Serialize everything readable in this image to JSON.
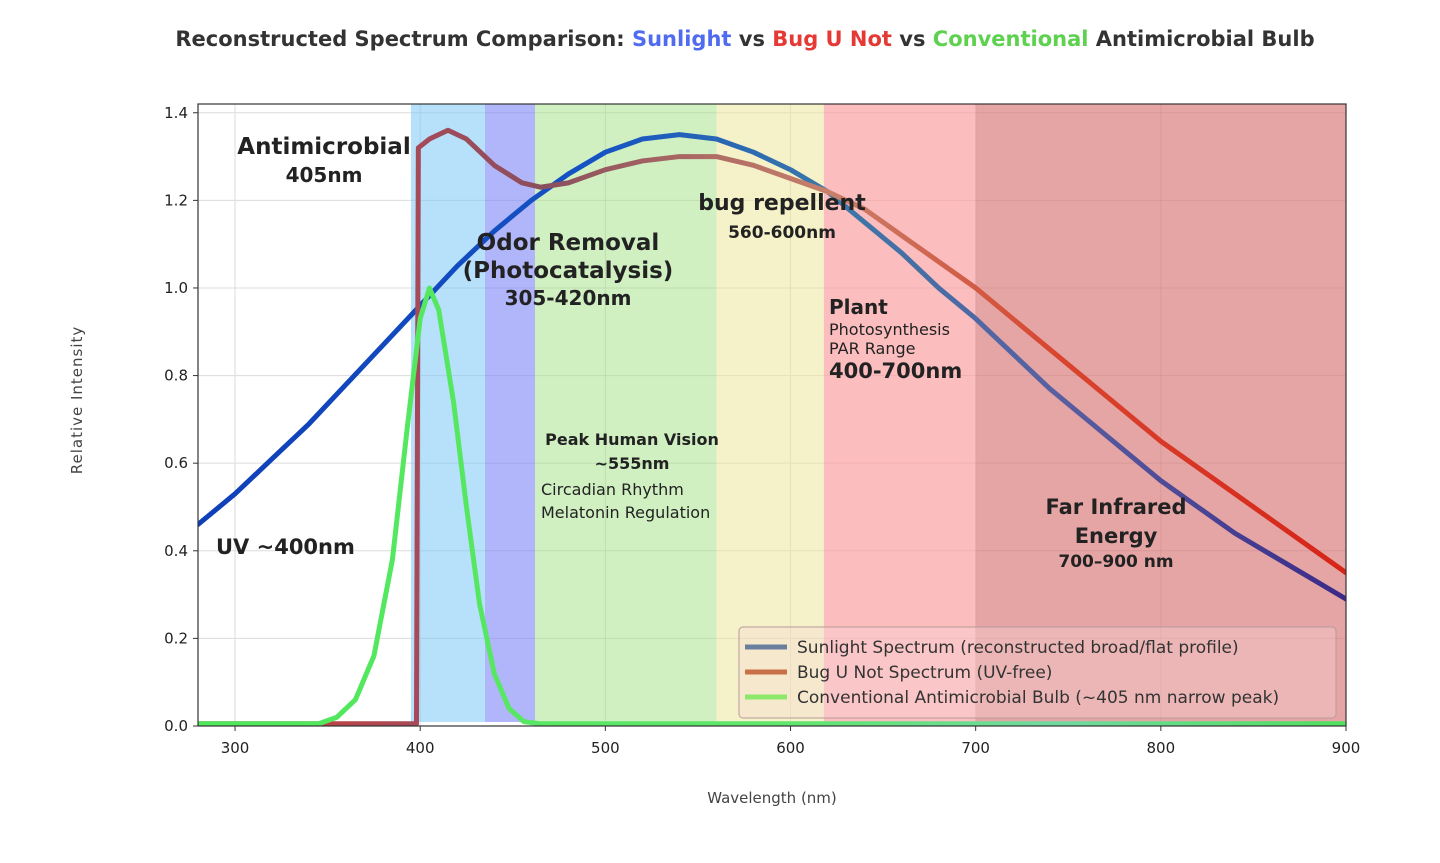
{
  "title_parts": [
    {
      "text": "Reconstructed Spectrum Comparison: ",
      "color": "#333333"
    },
    {
      "text": "Sunlight",
      "color": "#4f6bef"
    },
    {
      "text": " vs ",
      "color": "#333333"
    },
    {
      "text": "Bug U Not",
      "color": "#e53935"
    },
    {
      "text": " vs ",
      "color": "#333333"
    },
    {
      "text": "Conventional",
      "color": "#5ed14f"
    },
    {
      "text": " Antimicrobial Bulb",
      "color": "#333333"
    }
  ],
  "chart_data": {
    "type": "line",
    "title": "Reconstructed Spectrum Comparison: Sunlight vs Bug U Not vs Conventional Antimicrobial Bulb",
    "xlabel": "Wavelength (nm)",
    "ylabel": "Relative Intensity",
    "xlim": [
      280,
      900
    ],
    "ylim": [
      0,
      1.42
    ],
    "xticks": [
      300,
      400,
      500,
      600,
      700,
      800,
      900
    ],
    "yticks": [
      0.0,
      0.2,
      0.4,
      0.6,
      0.8,
      1.0,
      1.2,
      1.4
    ],
    "grid": true,
    "legend_position": "bottom-right",
    "bands": [
      {
        "name": "antimicrobial-band",
        "x0": 395,
        "x1": 435,
        "color": "#7cc8f5",
        "opacity": 0.55
      },
      {
        "name": "odor-removal-band",
        "x0": 435,
        "x1": 462,
        "color": "#7b86f5",
        "opacity": 0.6
      },
      {
        "name": "human-vision-band",
        "x0": 462,
        "x1": 560,
        "color": "#9de07f",
        "opacity": 0.48
      },
      {
        "name": "bug-repellent-band",
        "x0": 560,
        "x1": 618,
        "color": "#ece59a",
        "opacity": 0.55
      },
      {
        "name": "plant-par-band",
        "x0": 618,
        "x1": 700,
        "color": "#fb9a9c",
        "opacity": 0.65
      },
      {
        "name": "far-infrared-band",
        "x0": 700,
        "x1": 900,
        "color": "#d76e6e",
        "opacity": 0.62
      }
    ],
    "series": [
      {
        "name": "Sunlight Spectrum (reconstructed broad/flat profile)",
        "legend_color": "#6a7f9e",
        "points": [
          [
            280,
            0.46
          ],
          [
            300,
            0.53
          ],
          [
            320,
            0.61
          ],
          [
            340,
            0.69
          ],
          [
            360,
            0.78
          ],
          [
            380,
            0.87
          ],
          [
            400,
            0.96
          ],
          [
            420,
            1.05
          ],
          [
            440,
            1.13
          ],
          [
            460,
            1.2
          ],
          [
            480,
            1.26
          ],
          [
            500,
            1.31
          ],
          [
            520,
            1.34
          ],
          [
            540,
            1.35
          ],
          [
            560,
            1.34
          ],
          [
            580,
            1.31
          ],
          [
            600,
            1.27
          ],
          [
            620,
            1.22
          ],
          [
            640,
            1.15
          ],
          [
            660,
            1.08
          ],
          [
            680,
            1.0
          ],
          [
            700,
            0.93
          ],
          [
            720,
            0.85
          ],
          [
            740,
            0.77
          ],
          [
            760,
            0.7
          ],
          [
            780,
            0.63
          ],
          [
            800,
            0.56
          ],
          [
            820,
            0.5
          ],
          [
            840,
            0.44
          ],
          [
            860,
            0.39
          ],
          [
            880,
            0.34
          ],
          [
            900,
            0.29
          ]
        ]
      },
      {
        "name": "Bug U Not Spectrum (UV-free)",
        "legend_color": "#c97047",
        "points": [
          [
            280,
            0.005
          ],
          [
            398,
            0.005
          ],
          [
            399,
            1.32
          ],
          [
            405,
            1.34
          ],
          [
            415,
            1.36
          ],
          [
            425,
            1.34
          ],
          [
            440,
            1.28
          ],
          [
            455,
            1.24
          ],
          [
            465,
            1.23
          ],
          [
            480,
            1.24
          ],
          [
            500,
            1.27
          ],
          [
            520,
            1.29
          ],
          [
            540,
            1.3
          ],
          [
            560,
            1.3
          ],
          [
            580,
            1.28
          ],
          [
            600,
            1.25
          ],
          [
            620,
            1.22
          ],
          [
            640,
            1.18
          ],
          [
            660,
            1.12
          ],
          [
            680,
            1.06
          ],
          [
            700,
            1.0
          ],
          [
            720,
            0.93
          ],
          [
            740,
            0.86
          ],
          [
            760,
            0.79
          ],
          [
            780,
            0.72
          ],
          [
            800,
            0.65
          ],
          [
            820,
            0.59
          ],
          [
            840,
            0.53
          ],
          [
            860,
            0.47
          ],
          [
            880,
            0.41
          ],
          [
            900,
            0.35
          ]
        ]
      },
      {
        "name": "Conventional Antimicrobial Bulb (~405 nm narrow peak)",
        "legend_color": "#8de86a",
        "points": [
          [
            280,
            0.005
          ],
          [
            345,
            0.005
          ],
          [
            355,
            0.02
          ],
          [
            365,
            0.06
          ],
          [
            375,
            0.16
          ],
          [
            385,
            0.38
          ],
          [
            393,
            0.68
          ],
          [
            400,
            0.93
          ],
          [
            405,
            1.0
          ],
          [
            410,
            0.95
          ],
          [
            418,
            0.74
          ],
          [
            425,
            0.5
          ],
          [
            432,
            0.28
          ],
          [
            440,
            0.12
          ],
          [
            448,
            0.04
          ],
          [
            456,
            0.01
          ],
          [
            465,
            0.005
          ],
          [
            900,
            0.005
          ]
        ]
      }
    ],
    "annotations": [
      {
        "name": "annotation-antimicrobial",
        "lines": [
          "Antimicrobial",
          "405nm"
        ]
      },
      {
        "name": "annotation-odor-removal",
        "lines": [
          "Odor Removal",
          "(Photocatalysis)",
          "305-420nm"
        ]
      },
      {
        "name": "annotation-bug-repellent",
        "lines": [
          "bug repellent",
          "560-600nm"
        ]
      },
      {
        "name": "annotation-plant",
        "lines": [
          "Plant",
          "Photosynthesis",
          "PAR Range",
          "400-700nm"
        ]
      },
      {
        "name": "annotation-human-vision",
        "lines": [
          "Peak Human Vision",
          "~555nm",
          "Circadian Rhythm",
          "Melatonin Regulation"
        ]
      },
      {
        "name": "annotation-uv",
        "lines": [
          "UV ~400nm"
        ]
      },
      {
        "name": "annotation-far-infrared",
        "lines": [
          "Far Infrared",
          "Energy",
          "700–900 nm"
        ]
      }
    ]
  }
}
